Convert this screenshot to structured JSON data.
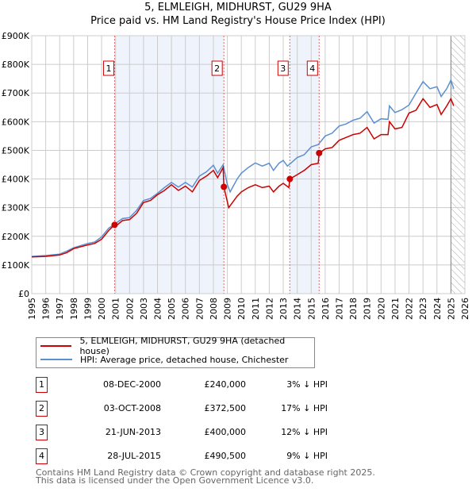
{
  "title_line1": "5, ELMLEIGH, MIDHURST, GU29 9HA",
  "title_line2": "Price paid vs. HM Land Registry's House Price Index (HPI)",
  "chart_data": {
    "type": "line",
    "title": "Price paid vs. HM Land Registry's House Price Index (HPI)",
    "xlim": [
      1995,
      2026
    ],
    "ylim": [
      0,
      900000
    ],
    "x_ticks": [
      "1995",
      "1996",
      "1997",
      "1998",
      "1999",
      "2000",
      "2001",
      "2002",
      "2003",
      "2004",
      "2005",
      "2006",
      "2007",
      "2008",
      "2009",
      "2010",
      "2011",
      "2012",
      "2013",
      "2014",
      "2015",
      "2016",
      "2017",
      "2018",
      "2019",
      "2020",
      "2021",
      "2022",
      "2023",
      "2024",
      "2025",
      "2026"
    ],
    "y_ticks": [
      "£0",
      "£100K",
      "£200K",
      "£300K",
      "£400K",
      "£500K",
      "£600K",
      "£700K",
      "£800K",
      "£900K"
    ],
    "grid": true,
    "shaded_ranges": [
      [
        2000.93,
        2008.75
      ],
      [
        2013.47,
        2015.57
      ]
    ],
    "hatched_from": 2025.0,
    "series": [
      {
        "name": "5, ELMLEIGH, MIDHURST, GU29 9HA (detached house)",
        "color": "#cc0000",
        "x": [
          1995,
          1996,
          1997,
          1997.5,
          1998,
          1999,
          1999.5,
          2000,
          2000.5,
          2000.93,
          2001,
          2001.5,
          2002,
          2002.5,
          2003,
          2003.5,
          2004,
          2004.5,
          2005,
          2005.5,
          2006,
          2006.5,
          2007,
          2007.5,
          2008,
          2008.3,
          2008.7,
          2008.75,
          2009.1,
          2009.7,
          2010,
          2010.5,
          2011,
          2011.5,
          2012,
          2012.3,
          2012.7,
          2013,
          2013.4,
          2013.47,
          2014,
          2014.5,
          2015,
          2015.5,
          2015.57,
          2016,
          2016.5,
          2017,
          2017.5,
          2018,
          2018.5,
          2019,
          2019.5,
          2020,
          2020.5,
          2020.6,
          2021,
          2021.5,
          2022,
          2022.5,
          2023,
          2023.5,
          2024,
          2024.3,
          2024.7,
          2025,
          2025.2
        ],
        "y": [
          128000,
          130000,
          135000,
          143000,
          157000,
          170000,
          175000,
          190000,
          220000,
          240000,
          235000,
          255000,
          258000,
          280000,
          318000,
          325000,
          345000,
          360000,
          380000,
          360000,
          375000,
          355000,
          395000,
          410000,
          430000,
          405000,
          440000,
          372500,
          300000,
          340000,
          355000,
          370000,
          380000,
          370000,
          375000,
          355000,
          375000,
          385000,
          370000,
          400000,
          415000,
          430000,
          450000,
          455000,
          490500,
          505000,
          510000,
          535000,
          545000,
          555000,
          560000,
          580000,
          540000,
          555000,
          555000,
          600000,
          575000,
          580000,
          630000,
          640000,
          680000,
          650000,
          660000,
          625000,
          655000,
          680000,
          655000
        ]
      },
      {
        "name": "HPI: Average price, detached house, Chichester",
        "color": "#5b8fd0",
        "x": [
          1995,
          1996,
          1997,
          1997.5,
          1998,
          1999,
          1999.5,
          2000,
          2000.5,
          2001,
          2001.5,
          2002,
          2002.5,
          2003,
          2003.5,
          2004,
          2004.5,
          2005,
          2005.5,
          2006,
          2006.5,
          2007,
          2007.5,
          2008,
          2008.3,
          2008.7,
          2009,
          2009.2,
          2009.7,
          2010,
          2010.5,
          2011,
          2011.5,
          2012,
          2012.3,
          2012.7,
          2013,
          2013.3,
          2013.7,
          2014,
          2014.5,
          2015,
          2015.5,
          2016,
          2016.5,
          2017,
          2017.5,
          2018,
          2018.5,
          2019,
          2019.5,
          2020,
          2020.5,
          2020.6,
          2021,
          2021.5,
          2022,
          2022.5,
          2023,
          2023.5,
          2024,
          2024.3,
          2024.7,
          2025,
          2025.2
        ],
        "y": [
          130000,
          133000,
          138000,
          148000,
          160000,
          175000,
          180000,
          198000,
          228000,
          245000,
          262000,
          265000,
          290000,
          325000,
          332000,
          350000,
          370000,
          388000,
          372000,
          388000,
          372000,
          410000,
          425000,
          448000,
          420000,
          450000,
          380000,
          355000,
          400000,
          420000,
          440000,
          456000,
          445000,
          455000,
          430000,
          455000,
          465000,
          445000,
          462000,
          475000,
          485000,
          512000,
          520000,
          550000,
          560000,
          585000,
          592000,
          605000,
          612000,
          635000,
          595000,
          610000,
          608000,
          655000,
          632000,
          642000,
          658000,
          700000,
          740000,
          715000,
          722000,
          688000,
          715000,
          745000,
          715000
        ]
      }
    ],
    "sales": [
      {
        "label": "1",
        "x": 2000.93,
        "y": 240000
      },
      {
        "label": "2",
        "x": 2008.75,
        "y": 372500
      },
      {
        "label": "3",
        "x": 2013.47,
        "y": 400000
      },
      {
        "label": "4",
        "x": 2015.57,
        "y": 490500
      }
    ]
  },
  "legend": {
    "red_label": "5, ELMLEIGH, MIDHURST, GU29 9HA (detached house)",
    "blue_label": "HPI: Average price, detached house, Chichester"
  },
  "transactions": [
    {
      "num": "1",
      "date": "08-DEC-2000",
      "price": "£240,000",
      "hpi": "3% ↓ HPI"
    },
    {
      "num": "2",
      "date": "03-OCT-2008",
      "price": "£372,500",
      "hpi": "17% ↓ HPI"
    },
    {
      "num": "3",
      "date": "21-JUN-2013",
      "price": "£400,000",
      "hpi": "12% ↓ HPI"
    },
    {
      "num": "4",
      "date": "28-JUL-2015",
      "price": "£490,500",
      "hpi": "9% ↓ HPI"
    }
  ],
  "footer_line1": "Contains HM Land Registry data © Crown copyright and database right 2025.",
  "footer_line2": "This data is licensed under the Open Government Licence v3.0."
}
